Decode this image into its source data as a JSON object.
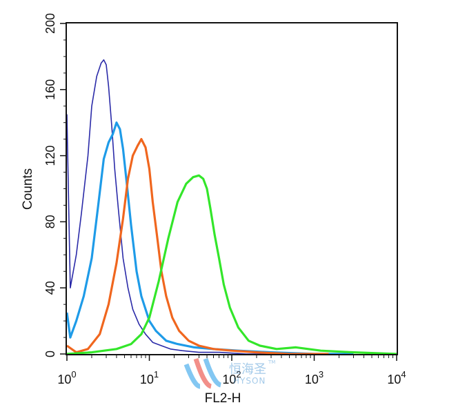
{
  "chart_data": {
    "type": "line",
    "title": "",
    "xlabel": "FL2-H",
    "ylabel": "Counts",
    "x_scale": "log",
    "xlim": [
      1,
      10000
    ],
    "ylim": [
      0,
      200
    ],
    "x_ticks": [
      {
        "value": 1,
        "base": "10",
        "exp": "0"
      },
      {
        "value": 10,
        "base": "10",
        "exp": "1"
      },
      {
        "value": 100,
        "base": "10",
        "exp": "2"
      },
      {
        "value": 1000,
        "base": "10",
        "exp": "3"
      },
      {
        "value": 10000,
        "base": "10",
        "exp": "4"
      }
    ],
    "y_ticks": [
      {
        "value": 0,
        "label": "0"
      },
      {
        "value": 40,
        "label": "40"
      },
      {
        "value": 80,
        "label": "80"
      },
      {
        "value": 120,
        "label": "120"
      },
      {
        "value": 160,
        "label": "160"
      },
      {
        "value": 200,
        "label": "200"
      }
    ],
    "grid": false,
    "legend": "none",
    "series": [
      {
        "color": "#2a2aa8",
        "x": [
          1.0,
          1.1,
          1.3,
          1.5,
          1.8,
          2.0,
          2.3,
          2.6,
          2.8,
          3.0,
          3.2,
          3.5,
          3.8,
          4.2,
          4.8,
          5.5,
          6.3,
          7.5,
          9.0,
          11,
          14,
          18,
          25,
          40,
          70,
          150,
          400,
          1000,
          3000
        ],
        "y": [
          145,
          40,
          60,
          85,
          120,
          150,
          168,
          176,
          178,
          175,
          162,
          138,
          112,
          88,
          58,
          40,
          27,
          18,
          12,
          7,
          5,
          3,
          2,
          1,
          1,
          0,
          0,
          0,
          0
        ]
      },
      {
        "color": "#1e9be8",
        "x": [
          1.0,
          1.1,
          1.3,
          1.6,
          2.0,
          2.4,
          2.8,
          3.2,
          3.6,
          4.0,
          4.4,
          4.8,
          5.3,
          6.0,
          7.0,
          8.0,
          10,
          12,
          16,
          22,
          35,
          60,
          120,
          300,
          1000,
          3000
        ],
        "y": [
          25,
          10,
          20,
          35,
          58,
          90,
          118,
          128,
          133,
          140,
          136,
          124,
          104,
          78,
          50,
          35,
          20,
          14,
          8,
          6,
          4,
          3,
          2,
          1,
          0,
          0
        ]
      },
      {
        "color": "#f0661e",
        "x": [
          1.0,
          1.3,
          1.8,
          2.5,
          3.2,
          4.0,
          4.8,
          5.5,
          6.3,
          7.2,
          8.0,
          9.0,
          10,
          11,
          12.5,
          14,
          16,
          19,
          23,
          30,
          40,
          60,
          100,
          200,
          500,
          1500
        ],
        "y": [
          5,
          1,
          3,
          12,
          30,
          55,
          82,
          106,
          120,
          126,
          130,
          125,
          112,
          92,
          70,
          50,
          35,
          22,
          14,
          8,
          5,
          3,
          2,
          1,
          0,
          0
        ]
      },
      {
        "color": "#33e62a",
        "x": [
          1.0,
          2.0,
          4.0,
          6.0,
          8.0,
          10,
          13,
          17,
          22,
          28,
          34,
          40,
          45,
          50,
          55,
          62,
          70,
          80,
          95,
          120,
          160,
          220,
          350,
          600,
          1200,
          3000,
          10000
        ],
        "y": [
          0,
          1,
          3,
          6,
          12,
          22,
          44,
          70,
          92,
          103,
          107,
          108,
          106,
          100,
          88,
          72,
          58,
          42,
          28,
          16,
          8,
          5,
          3,
          4,
          2,
          1,
          0
        ]
      }
    ]
  },
  "watermark": {
    "chinese": "恒海圣",
    "latin": "HYSON",
    "tm": "TM"
  }
}
